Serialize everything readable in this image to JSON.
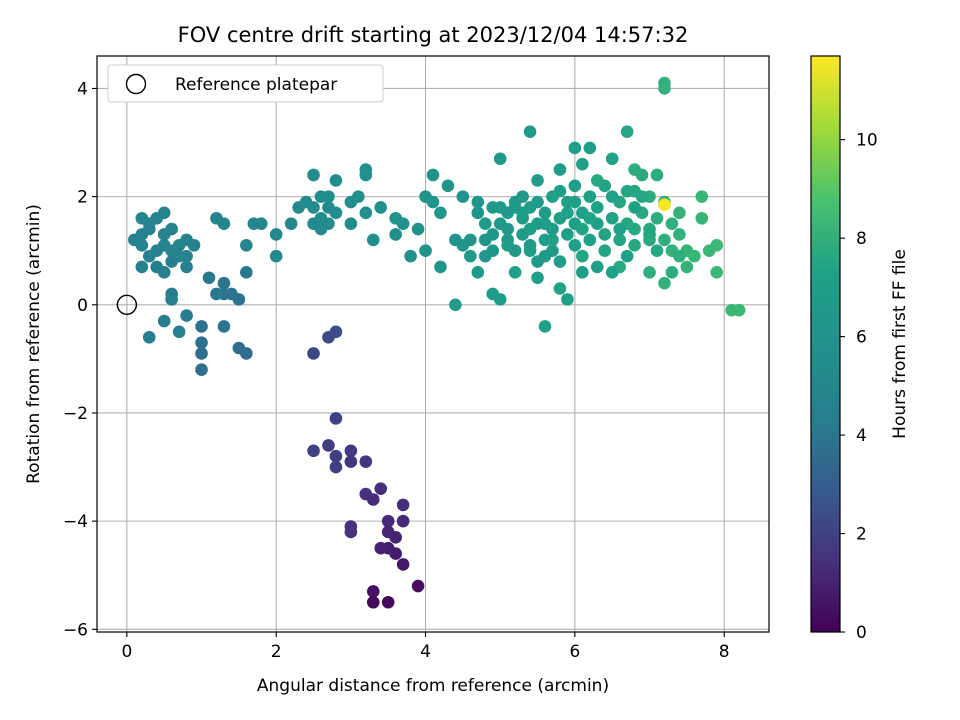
{
  "chart_data": {
    "type": "scatter",
    "title": "FOV centre drift starting at 2023/12/04 14:57:32",
    "xlabel": "Angular distance from reference (arcmin)",
    "ylabel": "Rotation from reference (arcmin)",
    "xlim": [
      -0.4,
      8.6
    ],
    "ylim": [
      -6.05,
      4.6
    ],
    "xticks": [
      0,
      2,
      4,
      6,
      8
    ],
    "yticks": [
      -6,
      -4,
      -2,
      0,
      2,
      4
    ],
    "grid": true,
    "legend": {
      "placement": "top-left",
      "entries": [
        "Reference platepar"
      ]
    },
    "reference_point": {
      "x": 0,
      "y": 0,
      "label": "Reference platepar"
    },
    "colorbar": {
      "label": "Hours from first FF file",
      "colormap": "viridis",
      "range": [
        0,
        11.7
      ],
      "ticks": [
        0,
        2,
        4,
        6,
        8,
        10
      ]
    },
    "points": [
      [
        3.3,
        -5.5,
        0.3
      ],
      [
        3.5,
        -5.5,
        0.3
      ],
      [
        3.3,
        -5.3,
        0.4
      ],
      [
        3.9,
        -5.2,
        0.4
      ],
      [
        3.6,
        -4.6,
        0.8
      ],
      [
        3.7,
        -4.8,
        0.7
      ],
      [
        3.5,
        -4.5,
        0.9
      ],
      [
        3.4,
        -4.5,
        1.0
      ],
      [
        3.6,
        -4.3,
        1.0
      ],
      [
        3.5,
        -4.2,
        1.1
      ],
      [
        3.7,
        -4.0,
        1.2
      ],
      [
        3.5,
        -4.0,
        1.2
      ],
      [
        3.7,
        -3.7,
        1.3
      ],
      [
        3.3,
        -3.6,
        1.3
      ],
      [
        3.4,
        -3.4,
        1.4
      ],
      [
        3.2,
        -3.5,
        1.4
      ],
      [
        3.0,
        -4.2,
        1.5
      ],
      [
        3.0,
        -4.1,
        1.5
      ],
      [
        3.2,
        -2.9,
        1.6
      ],
      [
        3.0,
        -2.9,
        1.6
      ],
      [
        3.0,
        -2.7,
        1.7
      ],
      [
        2.8,
        -3.0,
        1.8
      ],
      [
        2.8,
        -2.8,
        1.8
      ],
      [
        2.7,
        -2.6,
        1.9
      ],
      [
        2.5,
        -2.7,
        1.9
      ],
      [
        2.8,
        -2.1,
        2.0
      ],
      [
        2.5,
        -0.9,
        2.2
      ],
      [
        2.7,
        -0.6,
        2.3
      ],
      [
        2.8,
        -0.5,
        2.4
      ],
      [
        1.6,
        -0.9,
        3.6
      ],
      [
        1.5,
        -0.8,
        3.6
      ],
      [
        1.0,
        -1.2,
        3.7
      ],
      [
        1.0,
        -0.9,
        3.7
      ],
      [
        1.0,
        -0.7,
        3.8
      ],
      [
        1.0,
        -0.4,
        3.8
      ],
      [
        1.3,
        -0.4,
        3.9
      ],
      [
        1.5,
        0.1,
        3.9
      ],
      [
        1.4,
        0.2,
        4.0
      ],
      [
        1.3,
        0.2,
        4.0
      ],
      [
        1.3,
        0.4,
        4.0
      ],
      [
        1.2,
        0.2,
        4.1
      ],
      [
        1.1,
        0.5,
        4.1
      ],
      [
        1.6,
        0.6,
        4.1
      ],
      [
        0.8,
        -0.2,
        4.2
      ],
      [
        0.6,
        0.2,
        4.2
      ],
      [
        0.7,
        -0.5,
        4.3
      ],
      [
        0.6,
        0.1,
        4.3
      ],
      [
        0.5,
        -0.3,
        4.3
      ],
      [
        0.3,
        -0.6,
        4.3
      ],
      [
        0.5,
        0.6,
        4.4
      ],
      [
        0.4,
        0.7,
        4.4
      ],
      [
        0.6,
        0.8,
        4.4
      ],
      [
        0.8,
        0.7,
        4.5
      ],
      [
        0.2,
        0.7,
        4.5
      ],
      [
        0.3,
        0.9,
        4.5
      ],
      [
        0.4,
        1.0,
        4.5
      ],
      [
        0.2,
        1.1,
        4.6
      ],
      [
        0.1,
        1.2,
        4.6
      ],
      [
        0.2,
        1.3,
        4.6
      ],
      [
        0.3,
        1.4,
        4.6
      ],
      [
        0.3,
        1.5,
        4.6
      ],
      [
        0.4,
        1.6,
        4.6
      ],
      [
        0.5,
        1.3,
        4.7
      ],
      [
        0.6,
        1.4,
        4.7
      ],
      [
        0.7,
        1.1,
        4.7
      ],
      [
        0.8,
        1.2,
        4.7
      ],
      [
        0.8,
        0.9,
        4.7
      ],
      [
        0.9,
        1.1,
        4.7
      ],
      [
        0.5,
        1.7,
        4.7
      ],
      [
        0.7,
        0.9,
        4.8
      ],
      [
        0.6,
        1.0,
        4.8
      ],
      [
        0.5,
        1.1,
        4.8
      ],
      [
        0.2,
        1.6,
        4.8
      ],
      [
        1.3,
        1.5,
        4.9
      ],
      [
        1.2,
        1.6,
        4.9
      ],
      [
        1.7,
        1.5,
        5.0
      ],
      [
        1.8,
        1.5,
        5.0
      ],
      [
        1.6,
        1.1,
        5.0
      ],
      [
        2.0,
        1.3,
        5.1
      ],
      [
        2.0,
        0.9,
        5.1
      ],
      [
        2.2,
        1.5,
        5.1
      ],
      [
        2.3,
        1.8,
        5.2
      ],
      [
        2.5,
        1.5,
        5.2
      ],
      [
        2.5,
        1.8,
        5.3
      ],
      [
        2.6,
        1.4,
        5.3
      ],
      [
        2.7,
        1.8,
        5.3
      ],
      [
        2.7,
        1.5,
        5.4
      ],
      [
        2.6,
        1.6,
        5.4
      ],
      [
        2.5,
        2.4,
        5.4
      ],
      [
        2.4,
        1.9,
        5.5
      ],
      [
        2.6,
        2.0,
        5.5
      ],
      [
        2.7,
        2.0,
        5.5
      ],
      [
        2.8,
        1.7,
        5.5
      ],
      [
        2.8,
        2.3,
        5.6
      ],
      [
        3.0,
        1.5,
        5.6
      ],
      [
        3.0,
        1.9,
        5.6
      ],
      [
        3.1,
        2.0,
        5.7
      ],
      [
        3.2,
        1.7,
        5.7
      ],
      [
        3.2,
        2.4,
        5.7
      ],
      [
        3.3,
        1.2,
        5.7
      ],
      [
        3.4,
        1.8,
        5.8
      ],
      [
        3.2,
        2.5,
        5.8
      ],
      [
        3.6,
        1.3,
        5.8
      ],
      [
        3.6,
        1.6,
        5.9
      ],
      [
        3.7,
        1.5,
        5.9
      ],
      [
        3.8,
        0.9,
        5.9
      ],
      [
        3.9,
        1.4,
        6.0
      ],
      [
        4.0,
        1.0,
        6.0
      ],
      [
        4.0,
        2.0,
        6.0
      ],
      [
        4.1,
        2.4,
        6.0
      ],
      [
        4.1,
        1.9,
        6.1
      ],
      [
        4.2,
        1.7,
        6.1
      ],
      [
        4.2,
        0.7,
        6.1
      ],
      [
        4.3,
        2.2,
        6.1
      ],
      [
        4.4,
        1.2,
        6.2
      ],
      [
        4.5,
        2.0,
        6.2
      ],
      [
        4.5,
        1.1,
        6.2
      ],
      [
        4.6,
        1.2,
        6.3
      ],
      [
        4.7,
        1.9,
        6.3
      ],
      [
        4.7,
        1.7,
        6.3
      ],
      [
        4.8,
        1.2,
        6.3
      ],
      [
        4.8,
        0.9,
        6.4
      ],
      [
        4.9,
        1.3,
        6.4
      ],
      [
        4.9,
        1.0,
        6.4
      ],
      [
        5.0,
        1.5,
        6.5
      ],
      [
        5.0,
        2.7,
        6.5
      ],
      [
        5.1,
        1.4,
        6.5
      ],
      [
        5.1,
        1.7,
        6.5
      ],
      [
        5.1,
        1.2,
        6.6
      ],
      [
        5.2,
        1.9,
        6.6
      ],
      [
        5.2,
        1.0,
        6.6
      ],
      [
        5.3,
        1.6,
        6.6
      ],
      [
        5.3,
        1.3,
        6.7
      ],
      [
        5.4,
        1.8,
        6.7
      ],
      [
        5.4,
        3.2,
        6.7
      ],
      [
        5.4,
        1.1,
        6.8
      ],
      [
        5.5,
        1.5,
        6.8
      ],
      [
        5.5,
        1.9,
        6.8
      ],
      [
        5.5,
        0.8,
        6.8
      ],
      [
        5.6,
        1.2,
        6.9
      ],
      [
        5.6,
        1.7,
        6.9
      ],
      [
        5.7,
        1.4,
        6.9
      ],
      [
        5.7,
        1.0,
        6.9
      ],
      [
        5.8,
        1.6,
        7.0
      ],
      [
        5.8,
        2.1,
        7.0
      ],
      [
        5.9,
        1.3,
        7.0
      ],
      [
        5.9,
        1.9,
        7.1
      ],
      [
        6.0,
        1.5,
        7.1
      ],
      [
        6.0,
        2.9,
        7.1
      ],
      [
        6.0,
        1.1,
        7.1
      ],
      [
        6.1,
        1.7,
        7.2
      ],
      [
        6.1,
        2.6,
        7.2
      ],
      [
        6.2,
        1.2,
        7.2
      ],
      [
        6.2,
        2.0,
        7.3
      ],
      [
        6.3,
        1.5,
        7.3
      ],
      [
        6.3,
        1.8,
        7.3
      ],
      [
        6.4,
        1.3,
        7.4
      ],
      [
        6.4,
        2.2,
        7.4
      ],
      [
        6.5,
        1.6,
        7.4
      ],
      [
        6.5,
        2.7,
        7.4
      ],
      [
        6.6,
        1.2,
        7.5
      ],
      [
        6.6,
        1.9,
        7.5
      ],
      [
        6.7,
        3.2,
        7.5
      ],
      [
        6.7,
        1.5,
        7.6
      ],
      [
        6.8,
        2.1,
        7.6
      ],
      [
        6.8,
        1.1,
        7.6
      ],
      [
        6.9,
        1.7,
        7.7
      ],
      [
        6.9,
        2.4,
        7.7
      ],
      [
        7.0,
        1.4,
        7.7
      ],
      [
        7.0,
        2.0,
        7.8
      ],
      [
        7.1,
        1.6,
        7.8
      ],
      [
        7.1,
        2.4,
        7.8
      ],
      [
        7.2,
        1.2,
        7.9
      ],
      [
        7.2,
        1.9,
        7.9
      ],
      [
        7.3,
        1.5,
        7.9
      ],
      [
        7.3,
        1.0,
        8.0
      ],
      [
        7.4,
        1.3,
        8.0
      ],
      [
        7.4,
        1.7,
        8.1
      ],
      [
        7.5,
        1.0,
        8.1
      ],
      [
        7.5,
        0.7,
        8.1
      ],
      [
        7.6,
        0.9,
        8.2
      ],
      [
        7.7,
        2.0,
        8.2
      ],
      [
        7.7,
        1.6,
        8.2
      ],
      [
        7.8,
        1.0,
        8.3
      ],
      [
        7.9,
        1.1,
        8.3
      ],
      [
        7.9,
        0.6,
        8.3
      ],
      [
        8.1,
        -0.1,
        8.3
      ],
      [
        8.2,
        -0.1,
        8.3
      ],
      [
        7.2,
        4.1,
        8.0
      ],
      [
        7.2,
        4.0,
        8.0
      ],
      [
        7.2,
        0.4,
        8.0
      ],
      [
        7.0,
        0.6,
        7.9
      ],
      [
        6.8,
        2.5,
        7.8
      ],
      [
        6.6,
        0.7,
        7.7
      ],
      [
        6.3,
        2.3,
        7.6
      ],
      [
        6.1,
        0.9,
        7.5
      ],
      [
        5.8,
        0.3,
        7.4
      ],
      [
        5.9,
        0.1,
        7.3
      ],
      [
        5.6,
        -0.4,
        7.2
      ],
      [
        5.5,
        0.5,
        7.1
      ],
      [
        5.2,
        0.6,
        7.0
      ],
      [
        5.0,
        0.1,
        6.9
      ],
      [
        4.9,
        0.2,
        6.8
      ],
      [
        4.4,
        -0.0,
        6.7
      ],
      [
        4.7,
        0.6,
        6.6
      ],
      [
        4.9,
        1.8,
        6.6
      ],
      [
        5.3,
        2.0,
        6.7
      ],
      [
        5.5,
        2.3,
        6.8
      ],
      [
        5.8,
        2.5,
        6.9
      ],
      [
        6.0,
        2.2,
        7.0
      ],
      [
        6.2,
        2.9,
        7.1
      ],
      [
        6.5,
        2.0,
        7.2
      ],
      [
        6.6,
        1.4,
        7.3
      ],
      [
        6.8,
        1.8,
        7.3
      ],
      [
        7.0,
        1.3,
        7.4
      ],
      [
        6.9,
        2.0,
        7.5
      ],
      [
        6.4,
        1.0,
        7.5
      ],
      [
        6.1,
        1.4,
        7.4
      ],
      [
        5.9,
        1.7,
        7.3
      ],
      [
        5.7,
        1.2,
        7.2
      ],
      [
        5.4,
        1.4,
        7.1
      ],
      [
        5.3,
        1.7,
        7.0
      ],
      [
        5.1,
        1.1,
        6.9
      ],
      [
        5.0,
        1.8,
        6.8
      ],
      [
        4.8,
        1.5,
        6.7
      ],
      [
        4.6,
        0.9,
        6.6
      ],
      [
        5.6,
        0.9,
        6.8
      ],
      [
        5.8,
        0.8,
        6.9
      ],
      [
        6.1,
        0.6,
        7.0
      ],
      [
        6.3,
        0.7,
        7.1
      ],
      [
        6.5,
        0.6,
        7.2
      ],
      [
        6.7,
        0.9,
        7.3
      ],
      [
        7.1,
        1.0,
        7.6
      ],
      [
        7.3,
        0.6,
        7.8
      ],
      [
        7.4,
        0.9,
        7.9
      ],
      [
        6.0,
        1.9,
        7.2
      ],
      [
        6.2,
        1.6,
        7.4
      ],
      [
        5.7,
        2.0,
        7.0
      ],
      [
        5.6,
        1.5,
        6.9
      ],
      [
        5.2,
        1.8,
        6.8
      ],
      [
        5.4,
        1.0,
        6.9
      ],
      [
        6.7,
        2.1,
        7.5
      ],
      [
        6.8,
        1.4,
        7.6
      ],
      [
        7.0,
        1.2,
        7.7
      ],
      [
        7.2,
        1.85,
        11.6
      ]
    ]
  }
}
